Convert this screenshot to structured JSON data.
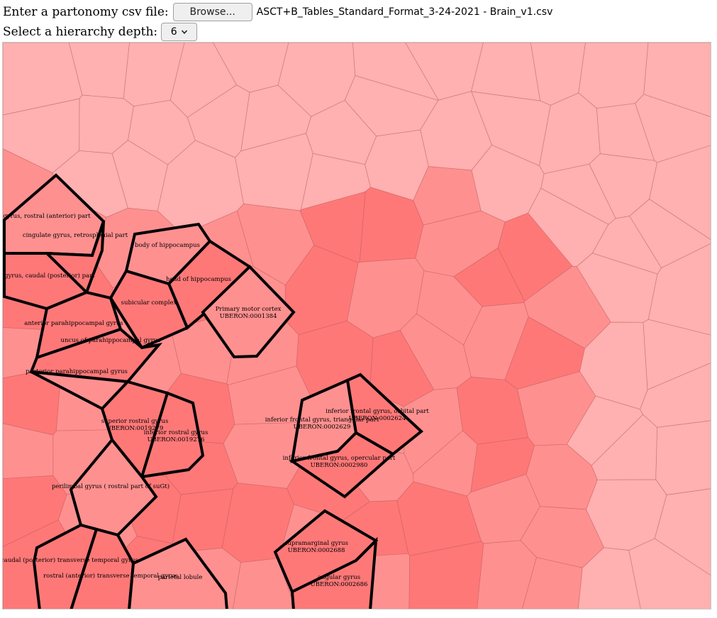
{
  "controls": {
    "file_label": "Enter a partonomy csv file:",
    "browse_label": "Browse...",
    "file_name": "ASCT+B_Tables_Standard_Format_3-24-2021 - Brain_v1.csv",
    "depth_label": "Select a hierarchy depth:",
    "depth_value": "6"
  },
  "icons": {
    "select_arrow": "chevron-down-icon"
  },
  "colors": {
    "cell_light": "#ffb0b0",
    "cell_mid": "#ff9090",
    "cell_dark": "#ff7878",
    "highlight_stroke": "#000000"
  },
  "regions": [
    {
      "lines": [
        "gyrus, rostral (anterior) part"
      ]
    },
    {
      "lines": [
        "cingulate gyrus, retrosplenial part"
      ]
    },
    {
      "lines": [
        "e gyrus, caudal (posterior) part"
      ]
    },
    {
      "lines": [
        "body of hippocampus"
      ]
    },
    {
      "lines": [
        "head of hippocampus"
      ]
    },
    {
      "lines": [
        "subicular complex"
      ]
    },
    {
      "lines": [
        "Primary motor cortex",
        "UBERON:0001384"
      ]
    },
    {
      "lines": [
        "anterior parahippocampal gyrus"
      ]
    },
    {
      "lines": [
        "uncus of parahippocampal gyrus"
      ]
    },
    {
      "lines": [
        "posterior parahippocampal gyrus"
      ]
    },
    {
      "lines": [
        "superior rostral gyrus",
        "UBERON:0019279"
      ]
    },
    {
      "lines": [
        "inferior rostral gyrus",
        "UBERON:0019276"
      ]
    },
    {
      "lines": [
        "inferior frontal gyrus, triangular part",
        "UBERON:0002629"
      ]
    },
    {
      "lines": [
        "inferior frontal gyrus, orbital part",
        "UBERON:0002624"
      ]
    },
    {
      "lines": [
        "inferior frontal gyrus, opercular part",
        "UBERON:0002980"
      ]
    },
    {
      "lines": [
        "perilimbal gyrus ( rostral part of suGt)"
      ]
    },
    {
      "lines": [
        "caudal (posterior) transverse temporal gyrus"
      ]
    },
    {
      "lines": [
        "rostral (anterior) transverse temporal gyrus"
      ]
    },
    {
      "lines": [
        "parietal lobule"
      ]
    },
    {
      "lines": [
        "supramarginal gyrus",
        "UBERON:0002688"
      ]
    },
    {
      "lines": [
        "angular gyrus",
        "UBERON:0002686"
      ]
    }
  ]
}
